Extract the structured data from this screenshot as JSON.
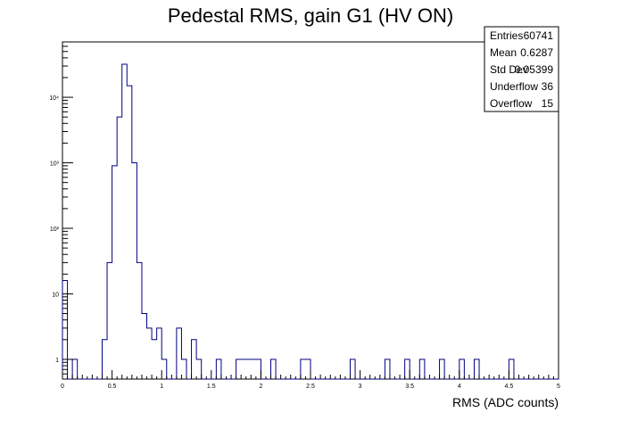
{
  "chart_data": {
    "type": "bar",
    "style": "step-histogram",
    "title": "Pedestal RMS, gain G1 (HV ON)",
    "xlabel": "RMS (ADC counts)",
    "ylabel": "",
    "log_y": true,
    "grid": false,
    "xlim": [
      0,
      5
    ],
    "ylim": [
      0.5,
      70000
    ],
    "line_color": "#000080",
    "bin_width": 0.05,
    "x_ticks": [
      {
        "value": 0,
        "label": "0"
      },
      {
        "value": 0.5,
        "label": "0.5"
      },
      {
        "value": 1,
        "label": "1"
      },
      {
        "value": 1.5,
        "label": "1.5"
      },
      {
        "value": 2,
        "label": "2"
      },
      {
        "value": 2.5,
        "label": "2.5"
      },
      {
        "value": 3,
        "label": "3"
      },
      {
        "value": 3.5,
        "label": "3.5"
      },
      {
        "value": 4,
        "label": "4"
      },
      {
        "value": 4.5,
        "label": "4.5"
      },
      {
        "value": 5,
        "label": "5"
      }
    ],
    "y_ticks": [
      {
        "value": 1,
        "label": "1"
      },
      {
        "value": 10,
        "label": "10"
      },
      {
        "value": 100,
        "label": "10²"
      },
      {
        "value": 1000,
        "label": "10³"
      },
      {
        "value": 10000,
        "label": "10⁴"
      }
    ],
    "bins": [
      {
        "x": 0.0,
        "count": 16
      },
      {
        "x": 0.1,
        "count": 1
      },
      {
        "x": 0.4,
        "count": 2
      },
      {
        "x": 0.45,
        "count": 30
      },
      {
        "x": 0.5,
        "count": 900
      },
      {
        "x": 0.55,
        "count": 5000
      },
      {
        "x": 0.6,
        "count": 32000
      },
      {
        "x": 0.65,
        "count": 15000
      },
      {
        "x": 0.7,
        "count": 1000
      },
      {
        "x": 0.75,
        "count": 30
      },
      {
        "x": 0.8,
        "count": 5
      },
      {
        "x": 0.85,
        "count": 3
      },
      {
        "x": 0.9,
        "count": 2
      },
      {
        "x": 0.95,
        "count": 3
      },
      {
        "x": 1.0,
        "count": 1
      },
      {
        "x": 1.15,
        "count": 3
      },
      {
        "x": 1.2,
        "count": 1
      },
      {
        "x": 1.3,
        "count": 2
      },
      {
        "x": 1.35,
        "count": 1
      },
      {
        "x": 1.55,
        "count": 1
      },
      {
        "x": 1.75,
        "count": 1
      },
      {
        "x": 1.8,
        "count": 1
      },
      {
        "x": 1.85,
        "count": 1
      },
      {
        "x": 1.9,
        "count": 1
      },
      {
        "x": 1.95,
        "count": 1
      },
      {
        "x": 2.1,
        "count": 1
      },
      {
        "x": 2.4,
        "count": 1
      },
      {
        "x": 2.45,
        "count": 1
      },
      {
        "x": 2.9,
        "count": 1
      },
      {
        "x": 3.25,
        "count": 1
      },
      {
        "x": 3.45,
        "count": 1
      },
      {
        "x": 3.6,
        "count": 1
      },
      {
        "x": 3.8,
        "count": 1
      },
      {
        "x": 4.0,
        "count": 1
      },
      {
        "x": 4.15,
        "count": 1
      },
      {
        "x": 4.5,
        "count": 1
      }
    ],
    "stats_box": {
      "placement": "top-right",
      "rows": [
        {
          "label": "Entries",
          "value": "60741"
        },
        {
          "label": "Mean",
          "value": "0.6287"
        },
        {
          "label": "Std Dev",
          "value": "0.05399"
        },
        {
          "label": "Underflow",
          "value": "36"
        },
        {
          "label": "Overflow",
          "value": "15"
        }
      ]
    }
  }
}
